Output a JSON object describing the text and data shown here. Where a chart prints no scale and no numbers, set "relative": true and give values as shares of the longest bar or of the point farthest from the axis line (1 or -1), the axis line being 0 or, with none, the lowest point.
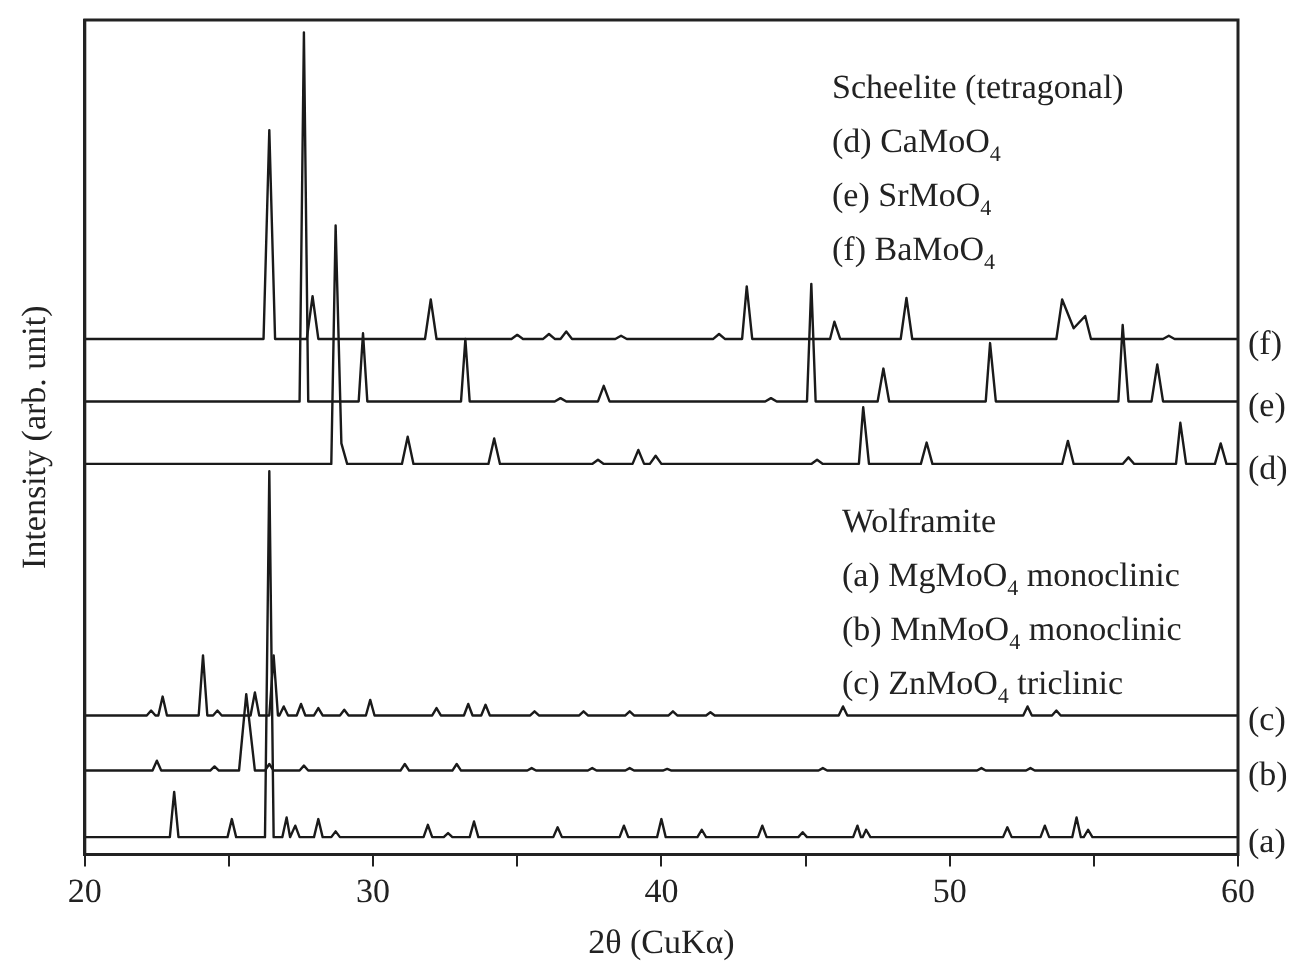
{
  "chart_data": {
    "type": "line",
    "xlabel": "2θ (CuKα)",
    "ylabel": "Intensity (arb. unit)",
    "relative": true,
    "legend": false,
    "grid": false,
    "marker": "none",
    "line_style": "solid",
    "xlim": [
      20,
      60
    ],
    "xticks": [
      20,
      {
        "value": 25,
        "label": null
      },
      30,
      {
        "value": 35,
        "label": null
      },
      40,
      {
        "value": 45,
        "label": null
      },
      50,
      {
        "value": 55,
        "label": null
      },
      60
    ],
    "annotations": [
      "Scheelite (tetragonal)",
      "(d) CaMoO$_{4}$",
      "(e) SrMoO$_{4}$",
      "(f) BaMoO$_{4}$",
      "Wolframite",
      "(a) MgMoO$_{4}$ monoclinic",
      "(b) MnMoO$_{4}$ monoclinic",
      "(c) ZnMoO$_{4}$ triclinic"
    ],
    "series": [
      {
        "name": "(a)",
        "color": "#1a1a1a",
        "x": [
          20,
          22.95,
          23.1,
          23.25,
          24.95,
          25.1,
          25.25,
          26.25,
          26.4,
          26.55,
          26.85,
          27.0,
          27.12,
          27.18,
          27.3,
          27.45,
          27.95,
          28.1,
          28.25,
          28.55,
          28.7,
          28.85,
          31.75,
          31.9,
          32.05,
          32.45,
          32.6,
          32.75,
          33.35,
          33.5,
          33.65,
          36.25,
          36.4,
          36.55,
          38.55,
          38.7,
          38.85,
          39.85,
          40.0,
          40.15,
          41.25,
          41.4,
          41.55,
          43.35,
          43.5,
          43.65,
          44.75,
          44.9,
          45.05,
          46.65,
          46.8,
          46.92,
          46.98,
          47.1,
          47.25,
          51.85,
          52.0,
          52.15,
          53.15,
          53.3,
          53.45,
          54.25,
          54.4,
          54.55,
          54.65,
          54.8,
          54.95,
          60
        ],
        "values": [
          0.021,
          0.021,
          0.076,
          0.021,
          0.021,
          0.043,
          0.021,
          0.021,
          0.466,
          0.021,
          0.021,
          0.045,
          0.021,
          0.021,
          0.035,
          0.021,
          0.021,
          0.043,
          0.021,
          0.021,
          0.028,
          0.021,
          0.021,
          0.036,
          0.021,
          0.021,
          0.026,
          0.021,
          0.021,
          0.04,
          0.021,
          0.021,
          0.033,
          0.021,
          0.021,
          0.035,
          0.021,
          0.021,
          0.043,
          0.021,
          0.021,
          0.03,
          0.021,
          0.021,
          0.035,
          0.021,
          0.021,
          0.027,
          0.021,
          0.021,
          0.035,
          0.021,
          0.021,
          0.03,
          0.021,
          0.021,
          0.033,
          0.021,
          0.021,
          0.035,
          0.021,
          0.021,
          0.045,
          0.021,
          0.021,
          0.03,
          0.021,
          0.021
        ]
      },
      {
        "name": "(b)",
        "color": "#1a1a1a",
        "x": [
          20,
          22.35,
          22.5,
          22.65,
          24.35,
          24.5,
          24.65,
          25.35,
          25.6,
          25.9,
          26.25,
          26.4,
          26.55,
          27.45,
          27.6,
          27.75,
          30.95,
          31.1,
          31.25,
          32.75,
          32.9,
          33.05,
          35.35,
          35.5,
          35.65,
          37.45,
          37.6,
          37.75,
          38.75,
          38.9,
          39.05,
          40.05,
          40.2,
          40.35,
          45.45,
          45.6,
          45.75,
          50.95,
          51.1,
          51.25,
          52.65,
          52.8,
          52.95,
          60
        ],
        "values": [
          0.102,
          0.102,
          0.114,
          0.102,
          0.102,
          0.107,
          0.102,
          0.102,
          0.195,
          0.102,
          0.102,
          0.11,
          0.102,
          0.102,
          0.108,
          0.102,
          0.102,
          0.11,
          0.102,
          0.102,
          0.11,
          0.102,
          0.102,
          0.105,
          0.102,
          0.102,
          0.105,
          0.102,
          0.102,
          0.105,
          0.102,
          0.102,
          0.104,
          0.102,
          0.102,
          0.105,
          0.102,
          0.102,
          0.105,
          0.102,
          0.102,
          0.105,
          0.102,
          0.102
        ]
      },
      {
        "name": "(c)",
        "color": "#1a1a1a",
        "x": [
          20,
          22.15,
          22.3,
          22.45,
          22.55,
          22.7,
          22.85,
          23.95,
          24.1,
          24.25,
          24.45,
          24.6,
          24.75,
          25.75,
          25.9,
          26.05,
          26.4,
          26.55,
          26.7,
          26.75,
          26.9,
          27.05,
          27.35,
          27.5,
          27.65,
          27.95,
          28.1,
          28.25,
          28.85,
          29.0,
          29.15,
          29.75,
          29.9,
          30.05,
          32.05,
          32.2,
          32.35,
          33.15,
          33.3,
          33.45,
          33.75,
          33.9,
          34.05,
          35.45,
          35.6,
          35.75,
          37.15,
          37.3,
          37.45,
          38.75,
          38.9,
          39.05,
          40.25,
          40.4,
          40.55,
          41.55,
          41.7,
          41.85,
          46.15,
          46.3,
          46.45,
          52.55,
          52.7,
          52.85,
          53.55,
          53.7,
          53.85,
          60
        ],
        "values": [
          0.169,
          0.169,
          0.175,
          0.169,
          0.169,
          0.192,
          0.169,
          0.169,
          0.242,
          0.169,
          0.169,
          0.175,
          0.169,
          0.169,
          0.197,
          0.169,
          0.169,
          0.242,
          0.169,
          0.169,
          0.18,
          0.169,
          0.169,
          0.183,
          0.169,
          0.169,
          0.178,
          0.169,
          0.169,
          0.176,
          0.169,
          0.169,
          0.188,
          0.169,
          0.169,
          0.178,
          0.169,
          0.169,
          0.183,
          0.169,
          0.169,
          0.182,
          0.169,
          0.169,
          0.174,
          0.169,
          0.169,
          0.174,
          0.169,
          0.169,
          0.174,
          0.169,
          0.169,
          0.174,
          0.169,
          0.169,
          0.173,
          0.169,
          0.169,
          0.18,
          0.169,
          0.169,
          0.18,
          0.169,
          0.169,
          0.175,
          0.169,
          0.169
        ]
      },
      {
        "name": "(d)",
        "color": "#1a1a1a",
        "x": [
          20,
          28.55,
          28.7,
          28.9,
          29.1,
          31.0,
          31.2,
          31.4,
          34.0,
          34.2,
          34.4,
          37.6,
          37.8,
          38.0,
          39.0,
          39.2,
          39.4,
          39.6,
          39.8,
          40.0,
          45.2,
          45.4,
          45.6,
          46.85,
          47.0,
          47.2,
          49.0,
          49.2,
          49.4,
          53.9,
          54.1,
          54.3,
          56.0,
          56.2,
          56.4,
          57.85,
          58.0,
          58.2,
          59.2,
          59.4,
          59.6,
          60
        ],
        "values": [
          0.475,
          0.475,
          0.765,
          0.5,
          0.475,
          0.475,
          0.508,
          0.475,
          0.475,
          0.506,
          0.475,
          0.475,
          0.48,
          0.475,
          0.475,
          0.492,
          0.475,
          0.475,
          0.485,
          0.475,
          0.475,
          0.48,
          0.475,
          0.475,
          0.544,
          0.475,
          0.475,
          0.501,
          0.475,
          0.475,
          0.503,
          0.475,
          0.475,
          0.483,
          0.475,
          0.475,
          0.525,
          0.475,
          0.475,
          0.5,
          0.475,
          0.475
        ]
      },
      {
        "name": "(e)",
        "color": "#1a1a1a",
        "x": [
          20,
          27.45,
          27.6,
          27.75,
          29.5,
          29.65,
          29.8,
          33.05,
          33.2,
          33.35,
          36.3,
          36.5,
          36.7,
          37.8,
          38.0,
          38.2,
          43.6,
          43.8,
          44.0,
          45.05,
          45.2,
          45.35,
          47.5,
          47.7,
          47.9,
          51.25,
          51.4,
          51.6,
          55.85,
          56.0,
          56.2,
          57.0,
          57.2,
          57.4,
          60
        ],
        "values": [
          0.551,
          0.551,
          1,
          0.551,
          0.551,
          0.634,
          0.551,
          0.551,
          0.627,
          0.551,
          0.551,
          0.555,
          0.551,
          0.551,
          0.57,
          0.551,
          0.551,
          0.555,
          0.551,
          0.551,
          0.694,
          0.551,
          0.551,
          0.591,
          0.551,
          0.551,
          0.622,
          0.551,
          0.551,
          0.644,
          0.551,
          0.551,
          0.596,
          0.551,
          0.551
        ]
      },
      {
        "name": "(f)",
        "color": "#1a1a1a",
        "x": [
          20,
          26.2,
          26.4,
          26.6,
          27.7,
          27.9,
          28.1,
          31.8,
          32.0,
          32.2,
          34.8,
          35.0,
          35.2,
          35.9,
          36.1,
          36.3,
          36.5,
          36.7,
          36.9,
          38.4,
          38.6,
          38.8,
          41.8,
          42.0,
          42.2,
          42.8,
          42.96,
          43.15,
          45.85,
          46.0,
          46.2,
          48.3,
          48.5,
          48.7,
          53.7,
          53.9,
          54.3,
          54.7,
          54.9,
          57.4,
          57.6,
          57.8,
          60
        ],
        "values": [
          0.627,
          0.627,
          0.881,
          0.627,
          0.627,
          0.679,
          0.627,
          0.627,
          0.675,
          0.627,
          0.627,
          0.632,
          0.627,
          0.627,
          0.633,
          0.627,
          0.627,
          0.636,
          0.627,
          0.627,
          0.631,
          0.627,
          0.627,
          0.633,
          0.627,
          0.627,
          0.691,
          0.627,
          0.627,
          0.648,
          0.627,
          0.627,
          0.677,
          0.627,
          0.627,
          0.675,
          0.64,
          0.655,
          0.627,
          0.627,
          0.631,
          0.627,
          0.627
        ]
      }
    ]
  }
}
